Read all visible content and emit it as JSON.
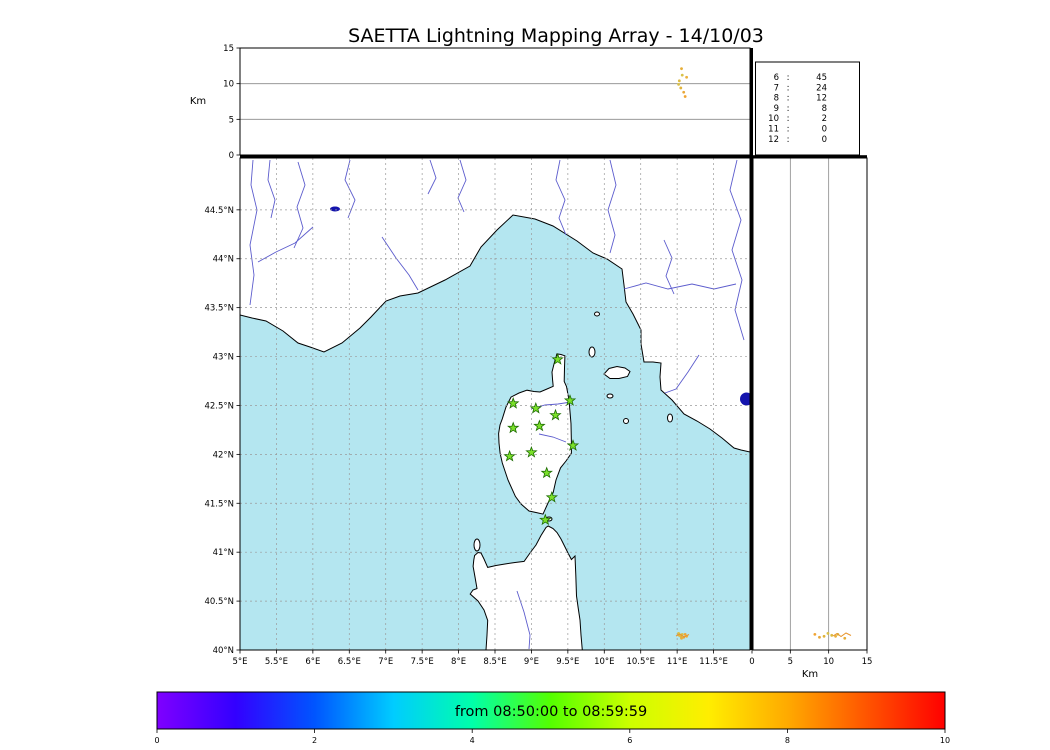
{
  "title": "SAETTA Lightning Mapping Array - 14/10/03",
  "alt_panel": {
    "ylabel": "Km",
    "yticks": [
      {
        "label": "0",
        "km": 0
      },
      {
        "label": "5",
        "km": 5
      },
      {
        "label": "10",
        "km": 10
      },
      {
        "label": "15",
        "km": 15
      }
    ]
  },
  "stats_box": {
    "rows": [
      {
        "stations": "6",
        "count": "45",
        "color": "#000000"
      },
      {
        "stations": "7",
        "count": "24",
        "color": "#ff3030"
      },
      {
        "stations": "8",
        "count": "12",
        "color": "#000000"
      },
      {
        "stations": "9",
        "count": "8",
        "color": "#000000"
      },
      {
        "stations": "10",
        "count": "2",
        "color": "#000000"
      },
      {
        "stations": "11",
        "count": "0",
        "color": "#000000"
      },
      {
        "stations": "12",
        "count": "0",
        "color": "#000000"
      }
    ]
  },
  "map_panel": {
    "lon_ticks": [
      {
        "label": "5°E",
        "lon": 5
      },
      {
        "label": "5.5°E",
        "lon": 5.5
      },
      {
        "label": "6°E",
        "lon": 6
      },
      {
        "label": "6.5°E",
        "lon": 6.5
      },
      {
        "label": "7°E",
        "lon": 7
      },
      {
        "label": "7.5°E",
        "lon": 7.5
      },
      {
        "label": "8°E",
        "lon": 8
      },
      {
        "label": "8.5°E",
        "lon": 8.5
      },
      {
        "label": "9°E",
        "lon": 9
      },
      {
        "label": "9.5°E",
        "lon": 9.5
      },
      {
        "label": "10°E",
        "lon": 10
      },
      {
        "label": "10.5°E",
        "lon": 10.5
      },
      {
        "label": "11°E",
        "lon": 11
      },
      {
        "label": "11.5°E",
        "lon": 11.5
      }
    ],
    "lat_ticks": [
      {
        "label": "40°N",
        "lat": 40
      },
      {
        "label": "40.5°N",
        "lat": 40.5
      },
      {
        "label": "41°N",
        "lat": 41
      },
      {
        "label": "41.5°N",
        "lat": 41.5
      },
      {
        "label": "42°N",
        "lat": 42
      },
      {
        "label": "42.5°N",
        "lat": 42.5
      },
      {
        "label": "43°N",
        "lat": 43
      },
      {
        "label": "43.5°N",
        "lat": 43.5
      },
      {
        "label": "44°N",
        "lat": 44
      },
      {
        "label": "44.5°N",
        "lat": 44.5
      }
    ]
  },
  "alt_lat_panel": {
    "xlabel": "Km",
    "xticks": [
      {
        "label": "0",
        "km": 0
      },
      {
        "label": "5",
        "km": 5
      },
      {
        "label": "10",
        "km": 10
      },
      {
        "label": "15",
        "km": 15
      }
    ]
  },
  "colorbar": {
    "label": "from 08:50:00 to 08:59:59",
    "ticks": [
      {
        "label": "0",
        "v": 0
      },
      {
        "label": "2",
        "v": 2
      },
      {
        "label": "4",
        "v": 4
      },
      {
        "label": "6",
        "v": 6
      },
      {
        "label": "8",
        "v": 8
      },
      {
        "label": "10",
        "v": 10
      }
    ],
    "gradient": [
      "#7f00ff",
      "#3300ff",
      "#0055ff",
      "#00ccff",
      "#00ffaa",
      "#55ff00",
      "#ccff00",
      "#ffee00",
      "#ffaa00",
      "#ff5500",
      "#ff0000"
    ]
  },
  "colors": {
    "sea": "#b4e6f0",
    "land": "#ffffff",
    "river": "#5c5ccd",
    "lake": "#1414ad",
    "station_fill": "#7be02a",
    "station_edge": "#1c6b00",
    "trace": "#e8952e"
  },
  "chart_data": {
    "type": "scatter",
    "title": "SAETTA Lightning Mapping Array - 14/10/03",
    "layout_hint": "XLMA-style composite: altitude-vs-longitude strip (top), plan-view map (main), altitude-vs-latitude strip (right), station-count table (top right), time colorbar (bottom)",
    "axes": {
      "longitude_deg_e": [
        5,
        12
      ],
      "latitude_deg_n": [
        40,
        45.03
      ],
      "altitude_km": [
        0,
        15
      ],
      "grid": "dashed every 0.5 degree"
    },
    "stations_lon_lat": [
      [
        9.36,
        42.97
      ],
      [
        8.75,
        42.52
      ],
      [
        9.06,
        42.47
      ],
      [
        9.53,
        42.55
      ],
      [
        9.33,
        42.4
      ],
      [
        8.75,
        42.27
      ],
      [
        9.11,
        42.29
      ],
      [
        8.7,
        41.98
      ],
      [
        9.0,
        42.02
      ],
      [
        9.57,
        42.09
      ],
      [
        9.21,
        41.81
      ],
      [
        9.28,
        41.56
      ],
      [
        9.19,
        41.33
      ]
    ],
    "lightning_sources": [
      {
        "lon": 11.07,
        "lat": 40.16,
        "alt_km": 11.2,
        "color": "#d8c24a"
      },
      {
        "lon": 11.05,
        "lat": 40.14,
        "alt_km": 9.4,
        "color": "#e0b43c"
      },
      {
        "lon": 11.09,
        "lat": 40.13,
        "alt_km": 8.8,
        "color": "#e8a83a"
      },
      {
        "lon": 11.03,
        "lat": 40.15,
        "alt_km": 10.4,
        "color": "#ddbb44"
      },
      {
        "lon": 11.11,
        "lat": 40.16,
        "alt_km": 8.2,
        "color": "#f0a432"
      },
      {
        "lon": 11.06,
        "lat": 40.12,
        "alt_km": 12.1,
        "color": "#e6ae38"
      },
      {
        "lon": 11.13,
        "lat": 40.14,
        "alt_km": 10.9,
        "color": "#eab03d"
      },
      {
        "lon": 11.02,
        "lat": 40.17,
        "alt_km": 9.9,
        "color": "#d9c049"
      }
    ],
    "source_count_by_min_stations": {
      "labels": [
        6,
        7,
        8,
        9,
        10,
        11,
        12
      ],
      "values": [
        45,
        24,
        12,
        8,
        2,
        0,
        0
      ],
      "highlighted_row": 7
    },
    "colorbar": {
      "label": "from 08:50:00 to 08:59:59",
      "axis_range": [
        0,
        10
      ],
      "style": "rainbow violet-to-red"
    }
  }
}
